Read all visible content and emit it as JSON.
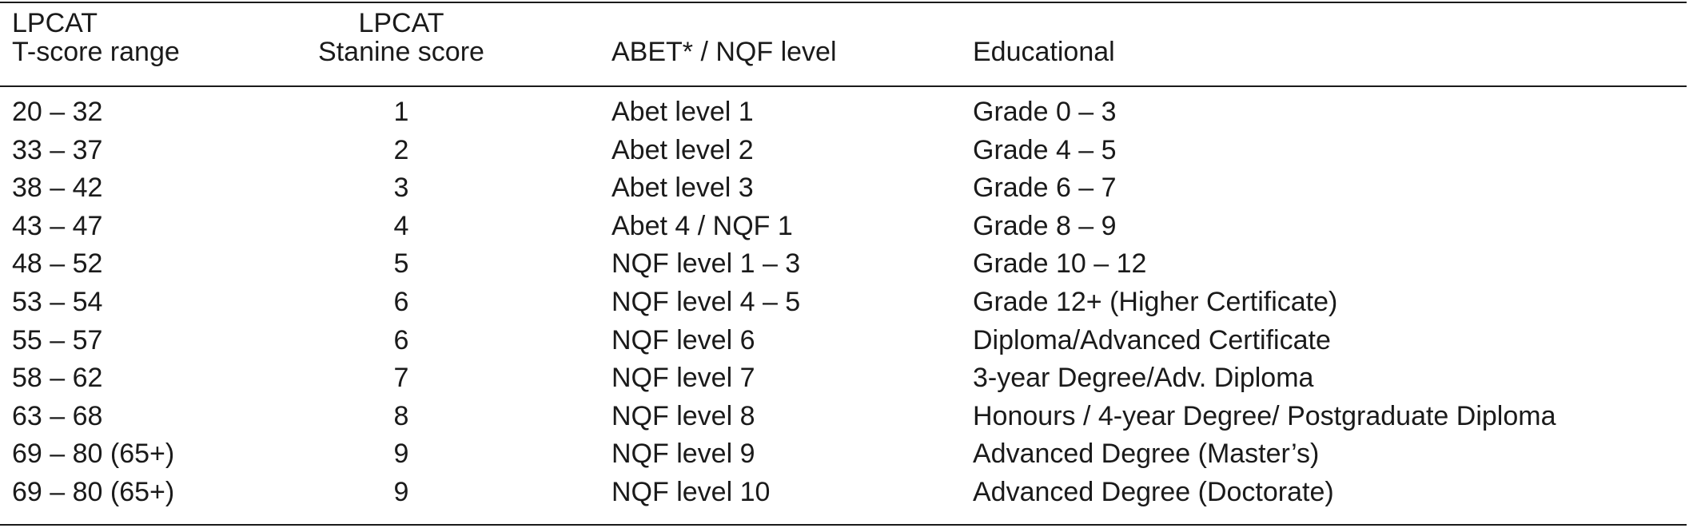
{
  "table": {
    "headers": {
      "tscore": [
        "LPCAT",
        "T-score range"
      ],
      "stanine": [
        "LPCAT",
        "Stanine score"
      ],
      "level": "ABET* / NQF level",
      "educational": "Educational"
    },
    "rows": [
      {
        "tscore": "20 – 32",
        "stanine": "1",
        "level": "Abet level 1",
        "educational": "Grade 0 – 3"
      },
      {
        "tscore": "33 – 37",
        "stanine": "2",
        "level": "Abet level 2",
        "educational": "Grade 4 – 5"
      },
      {
        "tscore": "38 – 42",
        "stanine": "3",
        "level": "Abet level 3",
        "educational": "Grade 6 – 7"
      },
      {
        "tscore": "43 – 47",
        "stanine": "4",
        "level": "Abet 4 / NQF 1",
        "educational": "Grade 8 – 9"
      },
      {
        "tscore": "48 – 52",
        "stanine": "5",
        "level": "NQF level 1 – 3",
        "educational": "Grade 10 – 12"
      },
      {
        "tscore": "53 – 54",
        "stanine": "6",
        "level": "NQF level 4 – 5",
        "educational": "Grade 12+ (Higher Certificate)"
      },
      {
        "tscore": "55 – 57",
        "stanine": "6",
        "level": "NQF level 6",
        "educational": "Diploma/Advanced Certificate"
      },
      {
        "tscore": "58 – 62",
        "stanine": "7",
        "level": "NQF level 7",
        "educational": "3-year Degree/Adv. Diploma"
      },
      {
        "tscore": "63 – 68",
        "stanine": "8",
        "level": "NQF level 8",
        "educational": "Honours / 4-year Degree/ Postgraduate Diploma"
      },
      {
        "tscore": "69 – 80 (65+)",
        "stanine": "9",
        "level": "NQF level 9",
        "educational": "Advanced Degree (Master’s)"
      },
      {
        "tscore": "69 – 80 (65+)",
        "stanine": "9",
        "level": "NQF level 10",
        "educational": "Advanced Degree (Doctorate)"
      }
    ]
  }
}
